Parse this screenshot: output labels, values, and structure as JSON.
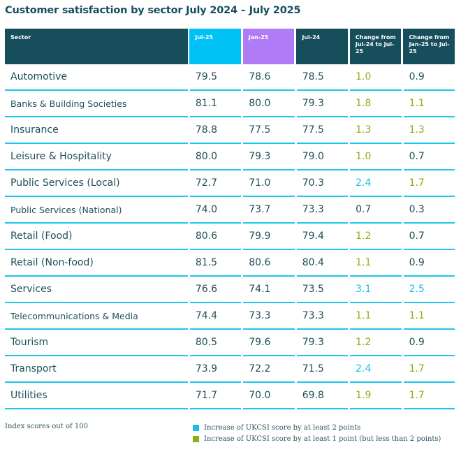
{
  "title": "Customer satisfaction by sector July 2024 – July 2025",
  "colors": {
    "header_dark": "#174e5b",
    "header_jul25": "#00c2f7",
    "header_jan25": "#b07cf5",
    "text": "#1f4f5a",
    "increase_2plus": "#1cbdea",
    "increase_1to2": "#8fae12",
    "row_rule": "#1fc5ec"
  },
  "table": {
    "headers": [
      "Sector",
      "Jul-25",
      "Jan-25",
      "Jul-24",
      "Change from Jul-24 to Jul-25",
      "Change from Jan-25 to Jul-25"
    ],
    "rows": [
      {
        "sector": "Automotive",
        "jul25": "79.5",
        "jan25": "78.6",
        "jul24": "78.5",
        "chg_yoy": "1.0",
        "chg_yoy_level": "1to2",
        "chg_6m": "0.9",
        "chg_6m_level": "none"
      },
      {
        "sector": "Banks & Building Societies",
        "jul25": "81.1",
        "jan25": "80.0",
        "jul24": "79.3",
        "chg_yoy": "1.8",
        "chg_yoy_level": "1to2",
        "chg_6m": "1.1",
        "chg_6m_level": "1to2"
      },
      {
        "sector": "Insurance",
        "jul25": "78.8",
        "jan25": "77.5",
        "jul24": "77.5",
        "chg_yoy": "1.3",
        "chg_yoy_level": "1to2",
        "chg_6m": "1.3",
        "chg_6m_level": "1to2"
      },
      {
        "sector": "Leisure & Hospitality",
        "jul25": "80.0",
        "jan25": "79.3",
        "jul24": "79.0",
        "chg_yoy": "1.0",
        "chg_yoy_level": "1to2",
        "chg_6m": "0.7",
        "chg_6m_level": "none"
      },
      {
        "sector": "Public Services (Local)",
        "jul25": "72.7",
        "jan25": "71.0",
        "jul24": "70.3",
        "chg_yoy": "2.4",
        "chg_yoy_level": "2plus",
        "chg_6m": "1.7",
        "chg_6m_level": "1to2"
      },
      {
        "sector": "Public Services (National)",
        "jul25": "74.0",
        "jan25": "73.7",
        "jul24": "73.3",
        "chg_yoy": "0.7",
        "chg_yoy_level": "none",
        "chg_6m": "0.3",
        "chg_6m_level": "none"
      },
      {
        "sector": "Retail (Food)",
        "jul25": "80.6",
        "jan25": "79.9",
        "jul24": "79.4",
        "chg_yoy": "1.2",
        "chg_yoy_level": "1to2",
        "chg_6m": "0.7",
        "chg_6m_level": "none"
      },
      {
        "sector": "Retail (Non-food)",
        "jul25": "81.5",
        "jan25": "80.6",
        "jul24": "80.4",
        "chg_yoy": "1.1",
        "chg_yoy_level": "1to2",
        "chg_6m": "0.9",
        "chg_6m_level": "none"
      },
      {
        "sector": "Services",
        "jul25": "76.6",
        "jan25": "74.1",
        "jul24": "73.5",
        "chg_yoy": "3.1",
        "chg_yoy_level": "2plus",
        "chg_6m": "2.5",
        "chg_6m_level": "2plus"
      },
      {
        "sector": "Telecommunications & Media",
        "jul25": "74.4",
        "jan25": "73.3",
        "jul24": "73.3",
        "chg_yoy": "1.1",
        "chg_yoy_level": "1to2",
        "chg_6m": "1.1",
        "chg_6m_level": "1to2"
      },
      {
        "sector": "Tourism",
        "jul25": "80.5",
        "jan25": "79.6",
        "jul24": "79.3",
        "chg_yoy": "1.2",
        "chg_yoy_level": "1to2",
        "chg_6m": "0.9",
        "chg_6m_level": "none"
      },
      {
        "sector": "Transport",
        "jul25": "73.9",
        "jan25": "72.2",
        "jul24": "71.5",
        "chg_yoy": "2.4",
        "chg_yoy_level": "2plus",
        "chg_6m": "1.7",
        "chg_6m_level": "1to2"
      },
      {
        "sector": "Utilities",
        "jul25": "71.7",
        "jan25": "70.0",
        "jul24": "69.8",
        "chg_yoy": "1.9",
        "chg_yoy_level": "1to2",
        "chg_6m": "1.7",
        "chg_6m_level": "1to2"
      }
    ]
  },
  "footnote": "Index scores out of 100",
  "legend": [
    {
      "label": "Increase of UKCSI score by at least 2 points",
      "level": "2plus"
    },
    {
      "label": "Increase of UKCSI score by at least 1 point (but less than 2 points)",
      "level": "1to2"
    }
  ]
}
